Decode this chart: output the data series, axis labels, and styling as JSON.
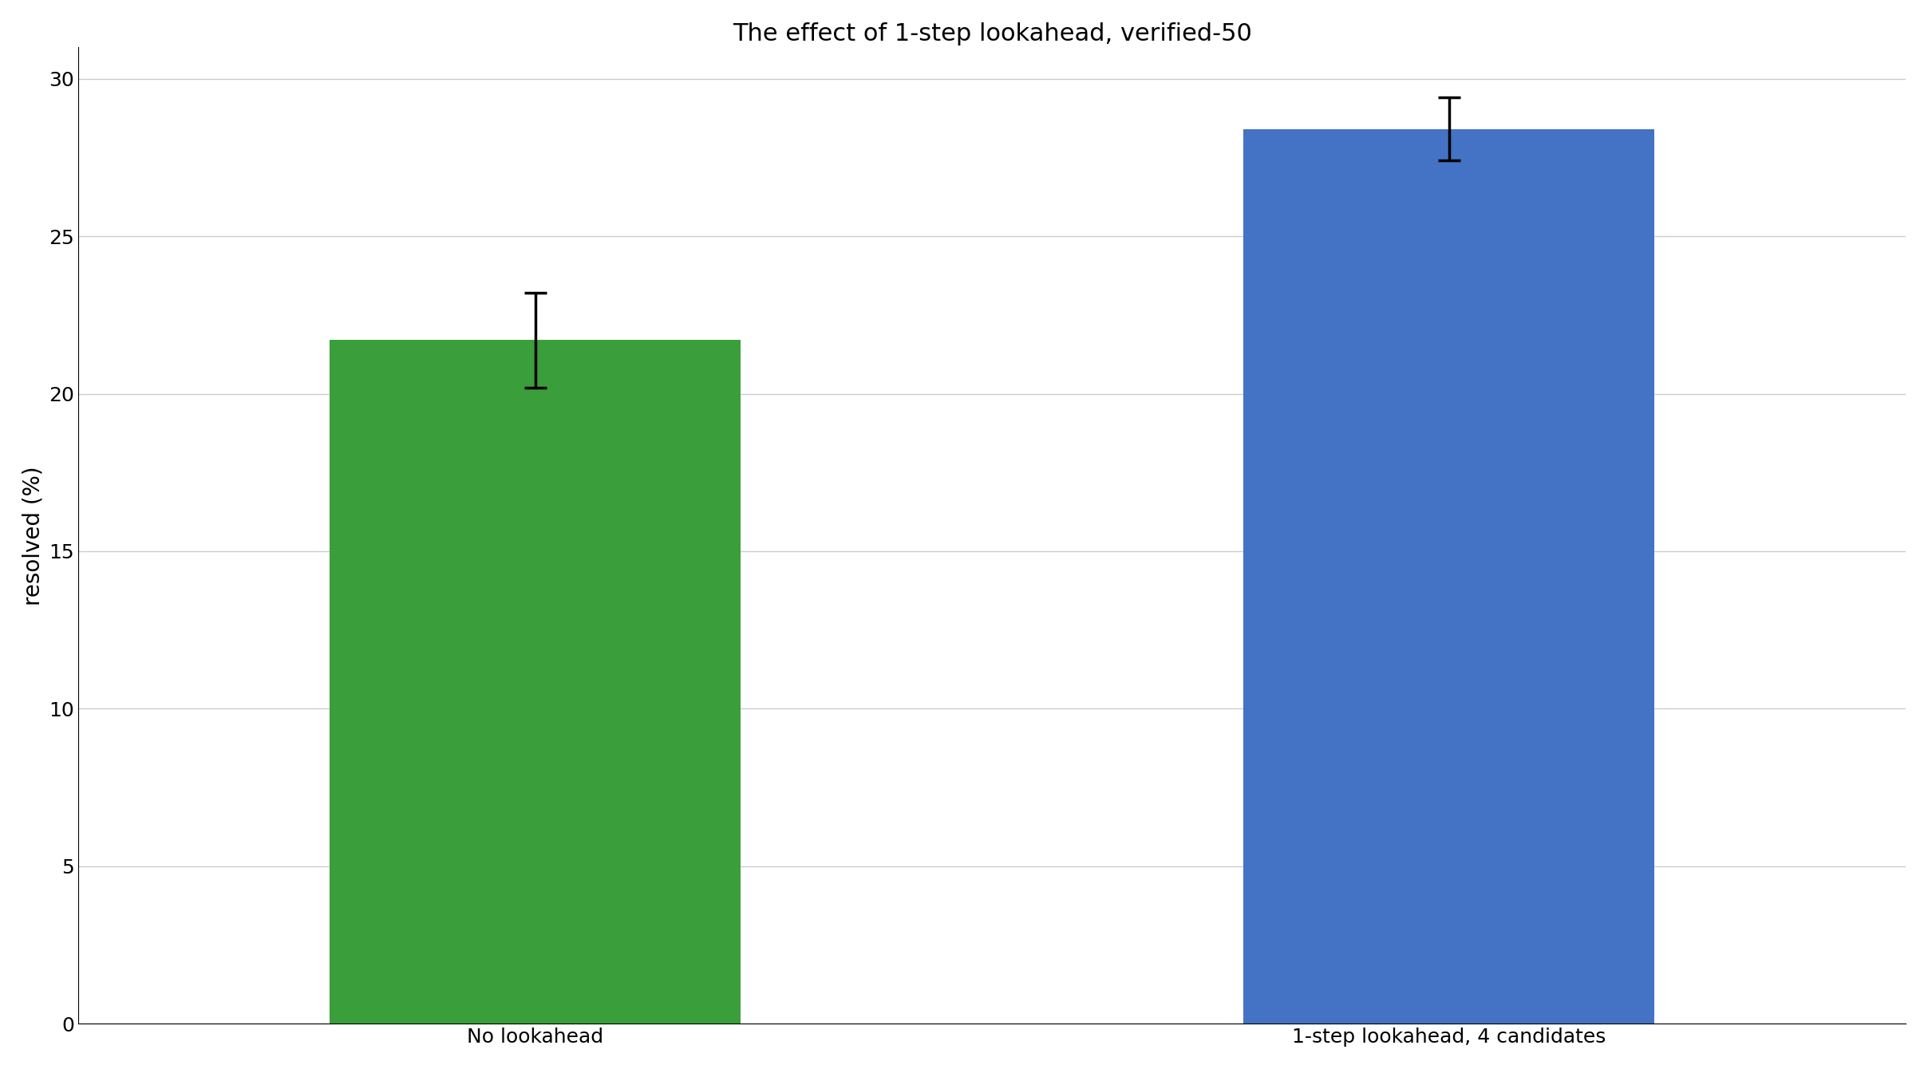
{
  "title": "The effect of 1-step lookahead, verified-50",
  "categories": [
    "No lookahead",
    "1-step lookahead, 4 candidates"
  ],
  "values": [
    21.7,
    28.4
  ],
  "errors": [
    1.5,
    1.0
  ],
  "bar_colors": [
    "#3a9e3a",
    "#4472c4"
  ],
  "ylabel": "resolved (%)",
  "ylim": [
    0,
    31
  ],
  "yticks": [
    0,
    5,
    10,
    15,
    20,
    25,
    30
  ],
  "bar_width": 0.45,
  "title_fontsize": 22,
  "label_fontsize": 20,
  "tick_fontsize": 18,
  "background_color": "#ffffff",
  "grid_color": "#cccccc",
  "figwidth": 24.16,
  "figheight": 13.4,
  "dpi": 100
}
